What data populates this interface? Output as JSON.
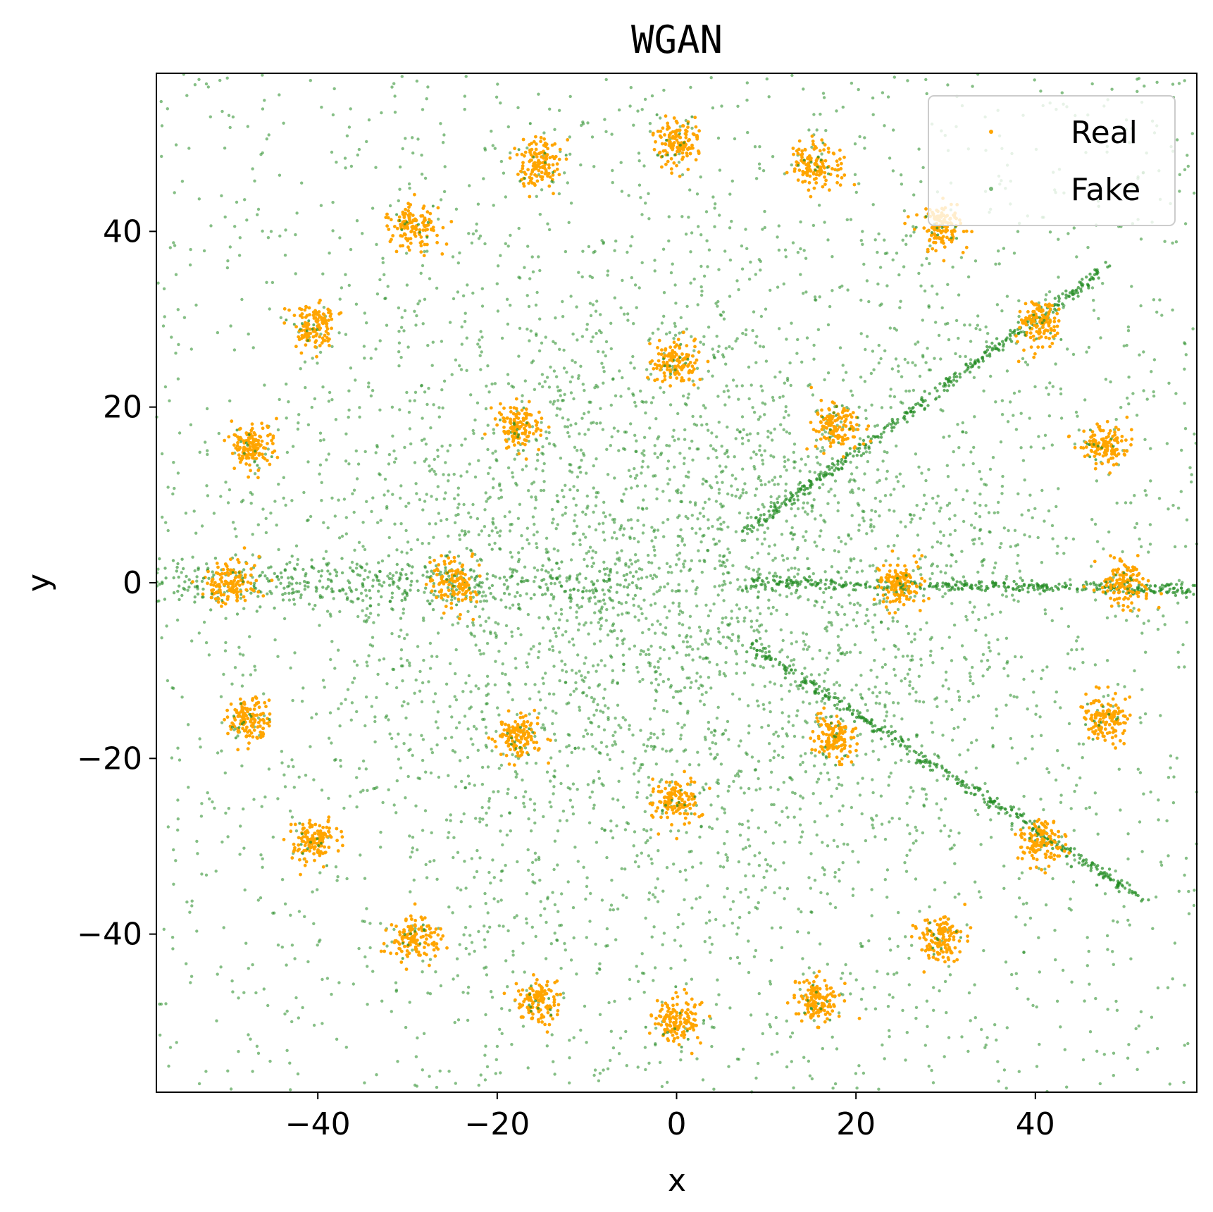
{
  "chart_data": {
    "type": "scatter",
    "title": "WGAN",
    "xlabel": "x",
    "ylabel": "y",
    "xlim": [
      -58,
      58
    ],
    "ylim": [
      -58,
      58
    ],
    "x_ticks": [
      -40,
      -20,
      0,
      20,
      40
    ],
    "y_ticks": [
      -40,
      -20,
      0,
      20,
      40
    ],
    "grid": false,
    "legend_position": "top-right",
    "series": [
      {
        "name": "Real",
        "color": "#ffa500",
        "cluster_centers": [
          [
            0,
            50
          ],
          [
            15.5,
            47.6
          ],
          [
            29.4,
            40.5
          ],
          [
            40.5,
            29.4
          ],
          [
            47.6,
            15.5
          ],
          [
            50,
            0
          ],
          [
            47.6,
            -15.5
          ],
          [
            40.5,
            -29.4
          ],
          [
            29.4,
            -40.5
          ],
          [
            15.5,
            -47.6
          ],
          [
            0,
            -50
          ],
          [
            -15.5,
            -47.6
          ],
          [
            -29.4,
            -40.5
          ],
          [
            -40.5,
            -29.4
          ],
          [
            -47.6,
            -15.5
          ],
          [
            -50,
            0
          ],
          [
            -47.6,
            15.5
          ],
          [
            -40.5,
            29.4
          ],
          [
            -29.4,
            40.5
          ],
          [
            -15.5,
            47.6
          ],
          [
            0,
            25
          ],
          [
            17.7,
            17.7
          ],
          [
            25,
            0
          ],
          [
            17.7,
            -17.7
          ],
          [
            0,
            -25
          ],
          [
            -17.7,
            -17.7
          ],
          [
            -25,
            0
          ],
          [
            -17.7,
            17.7
          ]
        ],
        "cluster_spread": 1.3
      },
      {
        "name": "Fake",
        "color": "#228b22",
        "pattern": "diffuse background with three linear rays from origin",
        "rays": [
          {
            "from": [
              8,
              6
            ],
            "to": [
              48,
              36
            ]
          },
          {
            "from": [
              8,
              0
            ],
            "to": [
              58,
              -0.8
            ]
          },
          {
            "from": [
              8,
              -7
            ],
            "to": [
              52,
              -36
            ]
          }
        ]
      }
    ]
  }
}
